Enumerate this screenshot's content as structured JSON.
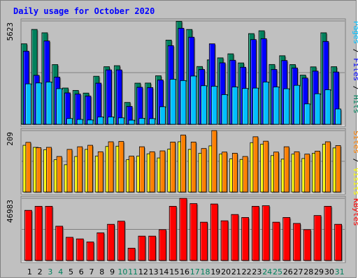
{
  "chart_data": {
    "type": "bar",
    "title": "Daily usage for October 2020",
    "categories": [
      "1",
      "2",
      "3",
      "4",
      "5",
      "6",
      "7",
      "8",
      "9",
      "10",
      "11",
      "12",
      "13",
      "14",
      "15",
      "16",
      "17",
      "18",
      "19",
      "20",
      "21",
      "22",
      "23",
      "24",
      "25",
      "26",
      "27",
      "28",
      "29",
      "30",
      "31"
    ],
    "weekend_days": [
      "3",
      "4",
      "10",
      "11",
      "17",
      "18",
      "24",
      "25",
      "31"
    ],
    "colors": {
      "hits": "#00805c",
      "files": "#0000ff",
      "pages": "#00c0ff",
      "visits": "#ffff00",
      "sites": "#ff8000",
      "kbytes": "#ff0000",
      "title": "#0000ff",
      "weekend_day": "#00805c",
      "weekday": "#000000",
      "panel_bg": "#c0c0c0"
    },
    "panels": [
      {
        "name": "hits-files-pages",
        "max_label": "5623",
        "ymax": 5623,
        "label_parts": [
          {
            "text": "Pages",
            "color": "#00c0ff"
          },
          {
            "text": " / ",
            "color": "#000000"
          },
          {
            "text": "Files",
            "color": "#0000ff"
          },
          {
            "text": " / ",
            "color": "#000000"
          },
          {
            "text": "Hits",
            "color": "#00805c"
          }
        ],
        "series": [
          {
            "name": "Hits",
            "color": "#00805c",
            "values": [
              4380,
              5163,
              4980,
              3250,
              1975,
              1845,
              1700,
              2615,
              3135,
              3190,
              1190,
              2240,
              2245,
              2640,
              4580,
              5605,
              5160,
              3145,
              3505,
              3615,
              3835,
              3340,
              4935,
              5090,
              3255,
              3730,
              3250,
              2675,
              3125,
              4980,
              3135
            ]
          },
          {
            "name": "Files",
            "color": "#0000ff",
            "values": [
              3980,
              2665,
              4535,
              2570,
              1710,
              1645,
              1535,
              2240,
              2960,
              2960,
              975,
              2015,
              2000,
              2410,
              4280,
              5225,
              4740,
              2985,
              4380,
              3345,
              3485,
              3105,
              4610,
              4660,
              2985,
              3470,
              3065,
              2515,
              2895,
              4510,
              2845
            ]
          },
          {
            "name": "Pages",
            "color": "#00c0ff",
            "values": [
              2200,
              2250,
              2300,
              1940,
              315,
              265,
              235,
              400,
              400,
              350,
              225,
              325,
              310,
              955,
              2450,
              2380,
              2625,
              2100,
              2070,
              1615,
              2030,
              1950,
              1970,
              2300,
              2030,
              1935,
              2120,
              1110,
              1660,
              1880,
              835
            ]
          }
        ]
      },
      {
        "name": "visits-sites",
        "max_label": "209",
        "ymax": 209,
        "label_parts": [
          {
            "text": "Sites",
            "color": "#ff8000"
          },
          {
            "text": " / ",
            "color": "#000000"
          },
          {
            "text": "Visits",
            "color": "#ffff00"
          }
        ],
        "series": [
          {
            "name": "Visits",
            "color": "#ffff00",
            "values": [
              159,
              152,
              144,
              110,
              93,
              121,
              145,
              122,
              155,
              156,
              110,
              122,
              130,
              116,
              146,
              171,
              145,
              132,
              157,
              129,
              113,
              111,
              168,
              163,
              124,
              112,
              129,
              114,
              132,
              163,
              150
            ]
          },
          {
            "name": "Sites",
            "color": "#ff8000",
            "values": [
              169,
              151,
              152,
              121,
              145,
              154,
              159,
              137,
              171,
              172,
              122,
              154,
              137,
              140,
              170,
              194,
              170,
              148,
              209,
              136,
              132,
              121,
              188,
              173,
              136,
              154,
              137,
              129,
              139,
              171,
              158
            ]
          }
        ]
      },
      {
        "name": "kbytes",
        "max_label": "46983",
        "ymax": 46983,
        "label_parts": [
          {
            "text": "KBytes",
            "color": "#ff0000"
          }
        ],
        "series": [
          {
            "name": "KBytes",
            "color": "#ff0000",
            "values": [
              37900,
              40950,
              40950,
              25900,
              17510,
              16300,
              14000,
              20900,
              27350,
              29700,
              9300,
              18400,
              18400,
              23300,
              40950,
              46983,
              43000,
              28950,
              42700,
              30000,
              34750,
              32500,
              40950,
              41400,
              28950,
              32500,
              28000,
              23300,
              33980,
              40950,
              27350
            ]
          }
        ]
      }
    ]
  }
}
